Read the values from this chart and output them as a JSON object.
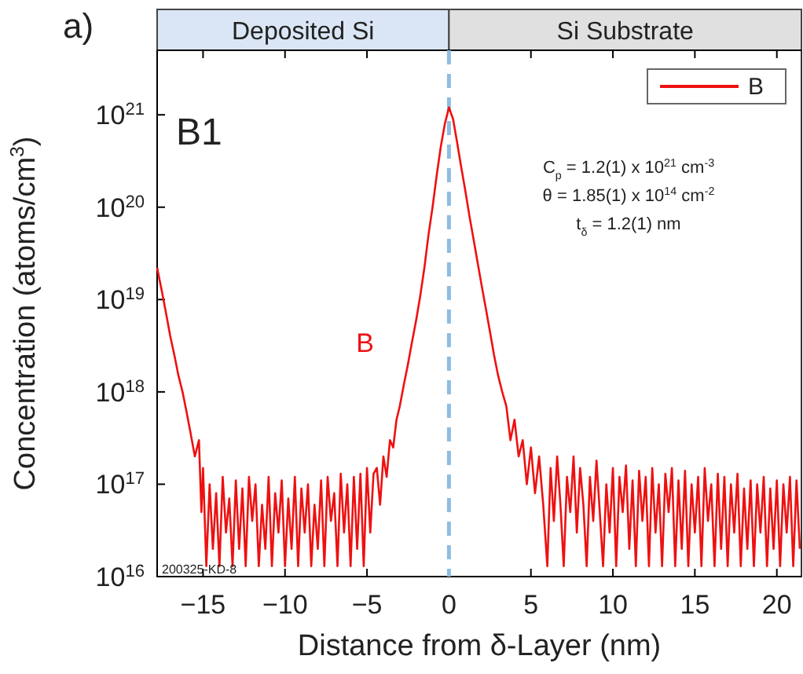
{
  "chart_data": {
    "type": "line",
    "title": "a)",
    "xlabel": "Distance from δ-Layer (nm)",
    "ylabel": "Concentration (atoms/cm$^{3}$)",
    "log": "y",
    "legend": "top right",
    "grid": false,
    "line_style": "solid",
    "marker": "none",
    "xlim": [
      -17.8,
      21.5
    ],
    "xticks": [
      -15,
      -10,
      -5,
      0,
      5,
      10,
      15,
      20
    ],
    "ylim": [
      1e+16,
      5e+21
    ],
    "yticks": [
      {
        "value": 1e+16,
        "label": "10$^{16}$"
      },
      {
        "value": 1e+17,
        "label": "10$^{17}$"
      },
      {
        "value": 1e+18,
        "label": "10$^{18}$"
      },
      {
        "value": 1e+19,
        "label": "10$^{19}$"
      },
      {
        "value": 1e+20,
        "label": "10$^{20}$"
      },
      {
        "value": 1e+21,
        "label": "10$^{21}$"
      }
    ],
    "ref_lines": [
      {
        "axis": "x",
        "value": 0,
        "color": "#8fbde0",
        "line_style": "dashed"
      }
    ],
    "annotations": [
      "B1",
      "B",
      "C$_{p}$ = 1.2(1) x 10$^{21}$ cm$^{-3}$",
      "θ = 1.85(1) x 10$^{14}$ cm$^{-2}$",
      "t$_{δ}$ = 1.2(1) nm",
      "200325-KD-8",
      "Deposited Si",
      "Si Substrate"
    ],
    "series": [
      {
        "name": "B",
        "color": "#ee1111",
        "x": [
          -17.8,
          -17.5,
          -17.25,
          -17,
          -16.75,
          -16.5,
          -16.25,
          -16,
          -15.75,
          -15.5,
          -15.25,
          -15.1,
          -15,
          -14.8,
          -14.6,
          -14.4,
          -14.2,
          -14,
          -13.8,
          -13.6,
          -13.4,
          -13.2,
          -13,
          -12.8,
          -12.6,
          -12.4,
          -12.2,
          -12,
          -11.8,
          -11.6,
          -11.4,
          -11.2,
          -11,
          -10.8,
          -10.6,
          -10.4,
          -10.2,
          -10,
          -9.8,
          -9.6,
          -9.4,
          -9.2,
          -9,
          -8.8,
          -8.6,
          -8.4,
          -8.2,
          -8,
          -7.8,
          -7.6,
          -7.4,
          -7.2,
          -7,
          -6.8,
          -6.6,
          -6.4,
          -6.2,
          -6,
          -5.8,
          -5.6,
          -5.4,
          -5.2,
          -5,
          -4.8,
          -4.6,
          -4.4,
          -4.2,
          -4,
          -3.8,
          -3.6,
          -3.4,
          -3.2,
          -3,
          -2.75,
          -2.5,
          -2.25,
          -2,
          -1.75,
          -1.5,
          -1.25,
          -1,
          -0.75,
          -0.5,
          -0.25,
          0,
          0.25,
          0.5,
          0.75,
          1,
          1.25,
          1.5,
          1.75,
          2,
          2.25,
          2.5,
          2.75,
          3,
          3.25,
          3.5,
          3.75,
          4,
          4.25,
          4.5,
          4.75,
          5,
          5.25,
          5.5,
          5.75,
          6,
          6.2,
          6.4,
          6.6,
          6.8,
          7,
          7.2,
          7.4,
          7.6,
          7.8,
          8,
          8.2,
          8.4,
          8.6,
          8.8,
          9,
          9.2,
          9.4,
          9.6,
          9.8,
          10,
          10.2,
          10.4,
          10.6,
          10.8,
          11,
          11.2,
          11.4,
          11.6,
          11.8,
          12,
          12.2,
          12.4,
          12.6,
          12.8,
          13,
          13.2,
          13.4,
          13.6,
          13.8,
          14,
          14.2,
          14.4,
          14.6,
          14.8,
          15,
          15.2,
          15.4,
          15.6,
          15.8,
          16,
          16.2,
          16.4,
          16.6,
          16.8,
          17,
          17.2,
          17.4,
          17.6,
          17.8,
          18,
          18.2,
          18.4,
          18.6,
          18.8,
          19,
          19.2,
          19.4,
          19.6,
          19.8,
          20,
          20.2,
          20.4,
          20.6,
          20.8,
          21,
          21.2,
          21.4
        ],
        "values": [
          2.2e+19,
          1.2e+19,
          7e+18,
          4e+18,
          2.5e+18,
          1.5e+18,
          1e+18,
          6e+17,
          3.5e+17,
          2e+17,
          3e+17,
          5e+16,
          1.5e+17,
          1.3e+16,
          1e+17,
          2e+16,
          8e+16,
          1.3e+16,
          1.2e+17,
          3e+16,
          7e+16,
          1.3e+16,
          1.1e+17,
          2e+16,
          9e+16,
          1.3e+16,
          1.2e+17,
          4e+16,
          1e+17,
          1.3e+16,
          6e+16,
          2e+16,
          1.2e+17,
          1.3e+16,
          8e+16,
          3e+16,
          1.1e+17,
          1.3e+16,
          7e+16,
          2e+16,
          1.2e+17,
          1.3e+16,
          9e+16,
          3e+16,
          1e+17,
          1.3e+16,
          6e+16,
          2e+16,
          1.1e+17,
          1.3e+16,
          1.2e+17,
          4e+16,
          8e+16,
          1.3e+16,
          1.3e+17,
          3e+16,
          1e+17,
          1.3e+16,
          1.2e+17,
          2e+16,
          1.3e+17,
          1.3e+16,
          1.5e+17,
          3e+16,
          1.3e+17,
          1.5e+17,
          6e+16,
          2e+17,
          1.2e+17,
          3e+17,
          2.5e+17,
          5e+17,
          7e+17,
          1.2e+18,
          2e+18,
          3.5e+18,
          6e+18,
          1.1e+19,
          2.2e+19,
          5e+19,
          1e+20,
          2.2e+20,
          4.5e+20,
          8e+20,
          1.2e+21,
          9e+20,
          5e+20,
          2.7e+20,
          1.5e+20,
          8e+19,
          4.5e+19,
          2.5e+19,
          1.4e+19,
          8e+18,
          4.5e+18,
          2.5e+18,
          1.5e+18,
          1e+18,
          7e+17,
          3e+17,
          5e+17,
          2e+17,
          3e+17,
          1e+17,
          2.5e+17,
          8e+16,
          2e+17,
          6e+16,
          1.3e+16,
          1.5e+17,
          4e+16,
          2e+17,
          6e+16,
          1.3e+16,
          1.2e+17,
          5e+16,
          2e+17,
          3e+16,
          1.5e+17,
          6e+16,
          1.3e+16,
          1.2e+17,
          4e+16,
          1.8e+17,
          5e+16,
          1.3e+16,
          1e+17,
          3e+16,
          1.5e+17,
          1.3e+16,
          1.2e+17,
          5e+16,
          1.6e+17,
          2e+16,
          1.1e+17,
          1.3e+16,
          1.4e+17,
          4e+16,
          1.2e+17,
          1.3e+16,
          1.5e+17,
          3e+16,
          1e+17,
          1.3e+16,
          1.3e+17,
          5e+16,
          1.5e+17,
          1.3e+16,
          1.1e+17,
          2e+16,
          1.4e+17,
          1.3e+16,
          1e+17,
          3e+16,
          1.2e+17,
          1.3e+16,
          1.5e+17,
          4e+16,
          1e+17,
          1.3e+16,
          1.3e+17,
          2e+16,
          1.2e+17,
          1.3e+16,
          1e+17,
          3e+16,
          1.3e+17,
          1.3e+16,
          9e+16,
          2e+16,
          1.1e+17,
          1.3e+16,
          1e+17,
          3e+16,
          1.2e+17,
          1.3e+16,
          9e+16,
          2e+16,
          1.1e+17,
          1.3e+16,
          1e+17,
          3e+16,
          1.2e+17,
          1.3e+16,
          1.1e+17,
          2e+16
        ]
      }
    ]
  }
}
